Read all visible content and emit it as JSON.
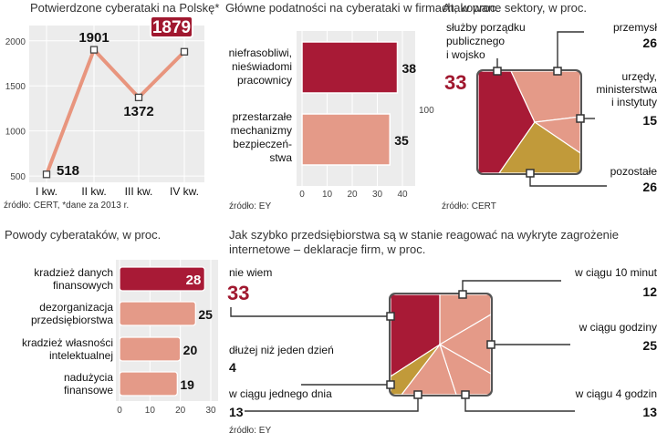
{
  "colors": {
    "dark_red": "#a81a36",
    "salmon": "#e49a88",
    "olive": "#c19a3a",
    "panel": "#ececec",
    "line": "#e8957e",
    "highlight": "#a0182f"
  },
  "charts": {
    "attacks": {
      "title": "Potwierdzone cyberataki na Polskę*",
      "source": "źródło: CERT, *dane za 2013 r.",
      "chart_data": {
        "type": "line",
        "categories": [
          "I kw.",
          "II kw.",
          "III kw.",
          "IV kw."
        ],
        "values": [
          518,
          1901,
          1372,
          1879
        ],
        "yticks": [
          500,
          1000,
          1500,
          2000
        ],
        "ylim": [
          430,
          2170
        ],
        "value_labels": [
          "518",
          "1901",
          "1372",
          "1879"
        ]
      }
    },
    "weaknesses": {
      "title": "Główne podatności na cyberataki w firmach, w proc.",
      "source": "źródło: EY",
      "chart_data": {
        "type": "bar",
        "categories": [
          "niefrasobliwi, nieświadomi pracownicy",
          "przestarzałe mechanizmy bezpieczeństwa"
        ],
        "category_lines": [
          [
            "niefrasobliwi,",
            "nieświadomi",
            "pracownicy"
          ],
          [
            "przestarzałe",
            "mechanizmy",
            "bezpieczeń-",
            "stwa"
          ]
        ],
        "values": [
          38,
          35
        ],
        "value_labels": [
          "38",
          "35"
        ],
        "xticks": [
          "0",
          "10",
          "20",
          "30",
          "40"
        ],
        "xlim": [
          0,
          40
        ],
        "extra_label": "100"
      }
    },
    "sectors": {
      "title": "Atakowane sektory, w proc.",
      "source": "źródło: CERT",
      "chart_data": {
        "type": "pie",
        "slices": [
          {
            "label_lines": [
              "służby porządku",
              "publicznego",
              "i wojsko"
            ],
            "value": 33,
            "value_label": "33"
          },
          {
            "label_lines": [
              "przemysł"
            ],
            "value": 26,
            "value_label": "26"
          },
          {
            "label_lines": [
              "urzędy,",
              "ministerstwa",
              "i instytuty"
            ],
            "value": 15,
            "value_label": "15"
          },
          {
            "label_lines": [
              "pozostałe"
            ],
            "value": 26,
            "value_label": "26"
          }
        ]
      }
    },
    "reasons": {
      "title": "Powody cyberataków, w proc.",
      "chart_data": {
        "type": "bar",
        "categories": [
          "kradzież danych finansowych",
          "dezorganizacja przedsiębiorstwa",
          "kradzież własności intelektualnej",
          "nadużycia finansowe"
        ],
        "category_lines": [
          [
            "kradzież danych",
            "finansowych"
          ],
          [
            "dezorganizacja",
            "przedsiębiorstwa"
          ],
          [
            "kradzież własności",
            "intelektualnej"
          ],
          [
            "nadużycia",
            "finansowe"
          ]
        ],
        "values": [
          28,
          25,
          20,
          19
        ],
        "value_labels": [
          "28",
          "25",
          "20",
          "19"
        ],
        "xticks": [
          "0",
          "10",
          "20",
          "30"
        ],
        "xlim": [
          0,
          30
        ]
      }
    },
    "reaction": {
      "title_lines": [
        "Jak szybko przedsiębiorstwa są w stanie reagować na wykryte zagrożenie",
        "internetowe – deklaracje firm, w proc."
      ],
      "source": "źródło: EY",
      "chart_data": {
        "type": "pie",
        "slices": [
          {
            "label_lines": [
              "nie wiem"
            ],
            "value": 33,
            "value_label": "33"
          },
          {
            "label_lines": [
              "w ciągu 10 minut"
            ],
            "value": 12,
            "value_label": "12"
          },
          {
            "label_lines": [
              "w ciągu godziny"
            ],
            "value": 25,
            "value_label": "25"
          },
          {
            "label_lines": [
              "w ciągu 4 godzin"
            ],
            "value": 13,
            "value_label": "13"
          },
          {
            "label_lines": [
              "w ciągu jednego dnia"
            ],
            "value": 13,
            "value_label": "13"
          },
          {
            "label_lines": [
              "dłużej niż jeden dzień"
            ],
            "value": 4,
            "value_label": "4"
          }
        ]
      }
    }
  }
}
